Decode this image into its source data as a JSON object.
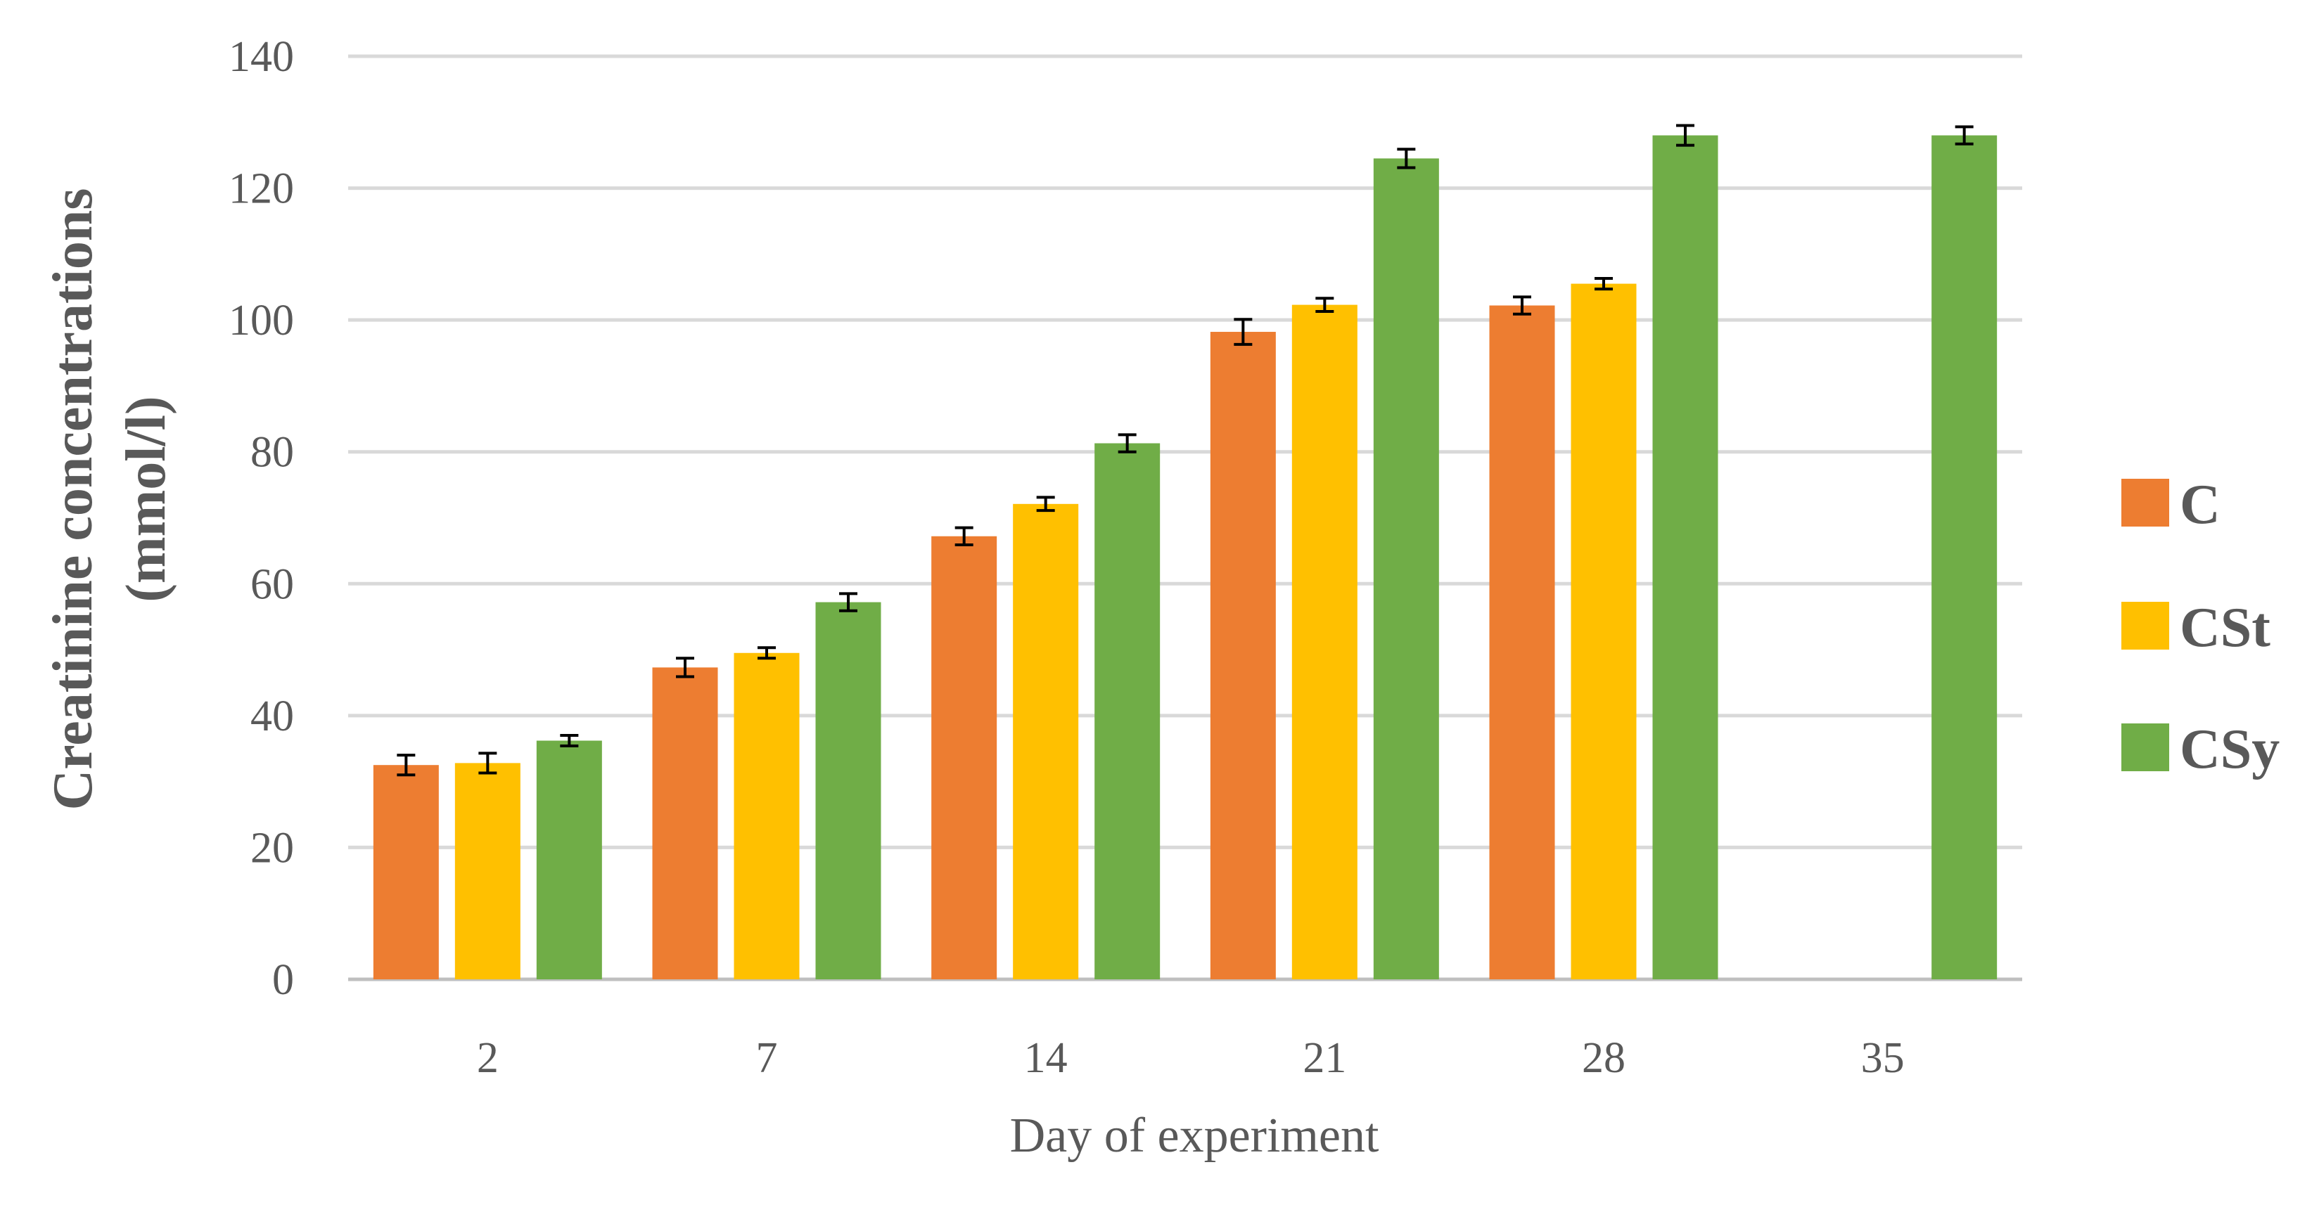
{
  "chart_data": {
    "type": "bar",
    "title": "",
    "xlabel": "Day of experiment",
    "ylabel_lines": [
      "Creatinine concentrations",
      "(mmol/l)"
    ],
    "categories": [
      "2",
      "7",
      "14",
      "21",
      "28",
      "35"
    ],
    "ylim": [
      0,
      140
    ],
    "yticks": [
      0,
      20,
      40,
      60,
      80,
      100,
      120,
      140
    ],
    "grid": true,
    "legend_position": "right",
    "error_bars": true,
    "series": [
      {
        "name": "C",
        "color": "#ED7D31",
        "values": [
          32.5,
          47.3,
          67.2,
          98.2,
          102.2,
          null
        ],
        "errors": [
          1.5,
          1.4,
          1.3,
          1.9,
          1.3,
          null
        ]
      },
      {
        "name": "CSt",
        "color": "#FFC000",
        "values": [
          32.8,
          49.5,
          72.1,
          102.3,
          105.5,
          null
        ],
        "errors": [
          1.5,
          0.8,
          1.0,
          1.0,
          0.8,
          null
        ]
      },
      {
        "name": "CSy",
        "color": "#70AD47",
        "values": [
          36.2,
          57.2,
          81.3,
          124.5,
          128.0,
          128.0
        ],
        "errors": [
          0.8,
          1.3,
          1.3,
          1.4,
          1.5,
          1.3
        ]
      }
    ]
  }
}
